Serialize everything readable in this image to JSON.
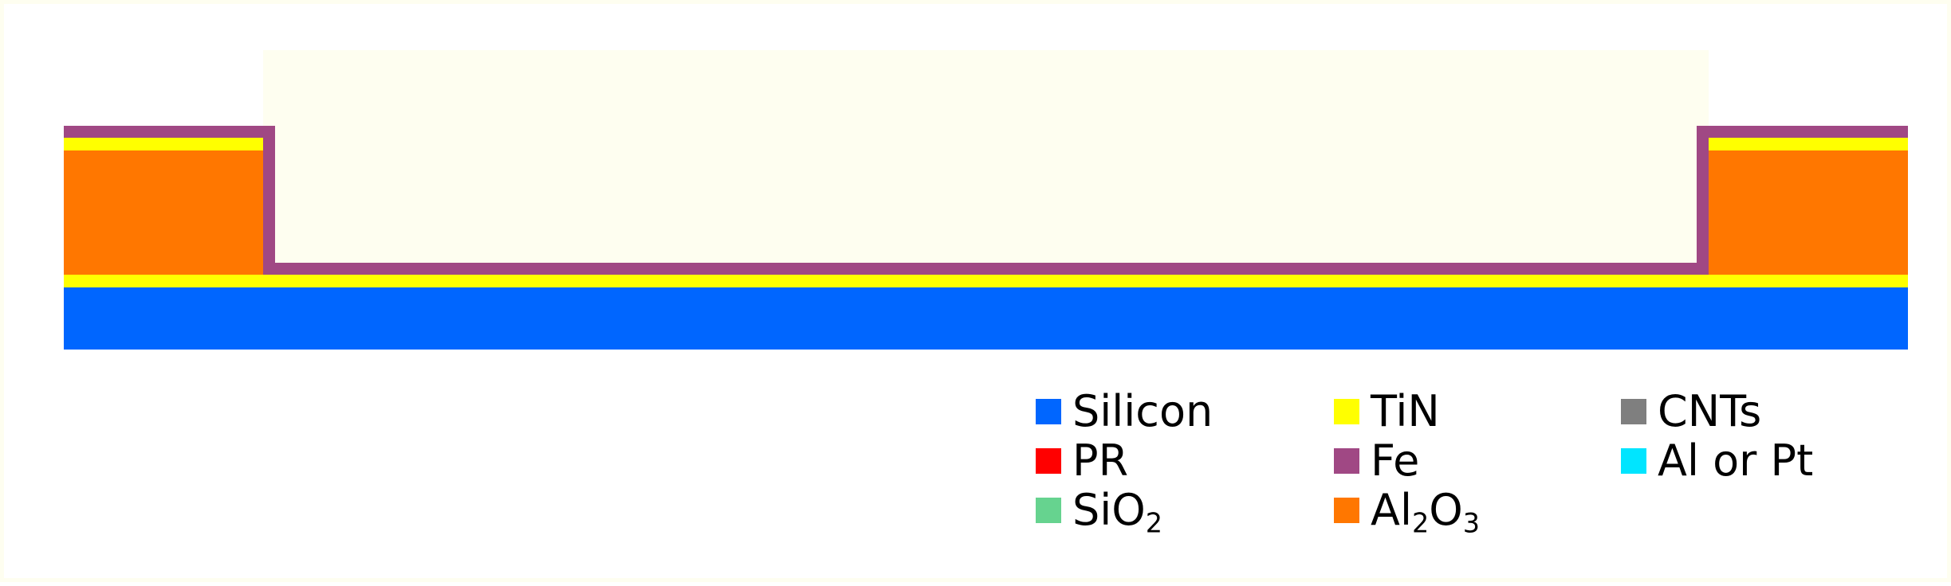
{
  "colors": {
    "silicon": "#0066ff",
    "pr": "#ff0000",
    "sio2": "#66d38f",
    "tin": "#ffff00",
    "fe": "#a04884",
    "al2o3": "#ff7700",
    "cnts": "#7f7f7f",
    "al_pt": "#00e5ff",
    "opening": "#fefef0"
  },
  "legend": {
    "silicon": {
      "label": "Silicon",
      "color": "#0066ff"
    },
    "pr": {
      "label": "PR",
      "color": "#ff0000"
    },
    "sio2": {
      "label_main": "SiO",
      "label_sub": "2",
      "color": "#66d38f"
    },
    "tin": {
      "label": "TiN",
      "color": "#ffff00"
    },
    "fe": {
      "label": "Fe",
      "color": "#a04884"
    },
    "al2o3": {
      "label_a": "Al",
      "sub_a": "2",
      "label_b": "O",
      "sub_b": "3",
      "color": "#ff7700"
    },
    "cnts": {
      "label": "CNTs",
      "color": "#7f7f7f"
    },
    "al_pt": {
      "label": "Al or Pt",
      "color": "#00e5ff"
    }
  }
}
